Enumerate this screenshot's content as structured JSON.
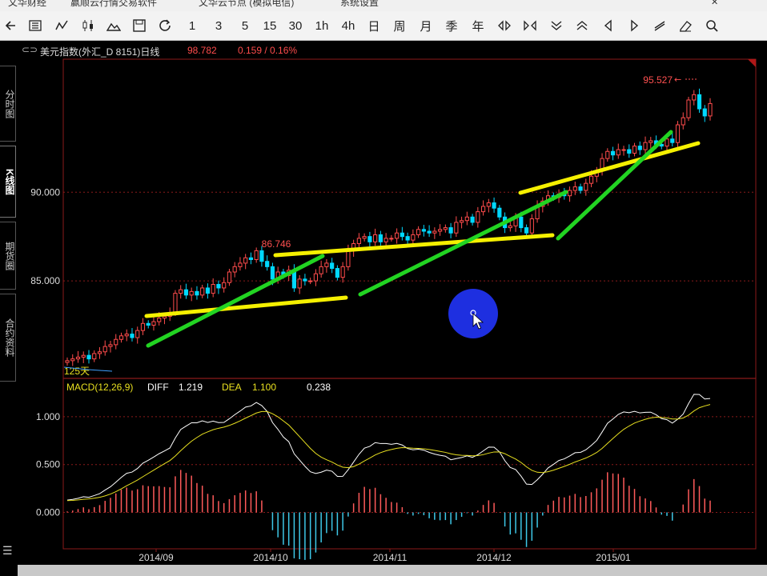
{
  "menubar": {
    "items": [
      "文华财经",
      "赢顺云行情交易软件",
      "文华云节点 (模拟电信)",
      "系统设置"
    ]
  },
  "toolbar": {
    "buttons": [
      {
        "name": "back-button",
        "icon": "arrow-left-icon",
        "label": ""
      },
      {
        "name": "list-button",
        "icon": "list-icon",
        "label": ""
      },
      {
        "name": "line-chart-button",
        "icon": "polyline-icon",
        "label": ""
      },
      {
        "name": "candle-button",
        "icon": "candlestick-icon",
        "label": ""
      },
      {
        "name": "bar-chart-button",
        "icon": "mountain-icon",
        "label": ""
      },
      {
        "name": "save-button",
        "icon": "save-icon",
        "label": ""
      },
      {
        "name": "refresh-button",
        "icon": "refresh-icon",
        "label": ""
      },
      {
        "name": "period-1m",
        "label": "1"
      },
      {
        "name": "period-3m",
        "label": "3"
      },
      {
        "name": "period-5m",
        "label": "5"
      },
      {
        "name": "period-15m",
        "label": "15"
      },
      {
        "name": "period-30m",
        "label": "30"
      },
      {
        "name": "period-1h",
        "label": "1h"
      },
      {
        "name": "period-4h",
        "label": "4h"
      },
      {
        "name": "period-day",
        "label": "日"
      },
      {
        "name": "period-week",
        "label": "周"
      },
      {
        "name": "period-month",
        "label": "月"
      },
      {
        "name": "period-quarter",
        "label": "季"
      },
      {
        "name": "period-year",
        "label": "年"
      }
    ],
    "right_buttons": [
      "zoom-in-icon",
      "zoom-out-icon",
      "scroll-down-icon",
      "scroll-up-icon",
      "pan-left-icon",
      "pan-right-icon",
      "draw-line-icon",
      "eraser-icon",
      "search-icon"
    ]
  },
  "infobar": {
    "symbol_icon": "link-icon",
    "title": "美元指数(外汇_D 8151)日线",
    "price": "98.782",
    "change": "0.159 / 0.16%"
  },
  "sidebar": {
    "tabs": [
      "分时图",
      "K线图",
      "期货圈",
      "合约资料"
    ],
    "active": 1
  },
  "colors": {
    "up": "#ff4c4c",
    "down": "#00d8ff",
    "grid": "#8b1a1a",
    "axis_text": "#dddddd",
    "price_label": "#ff5050",
    "diff": "#ffffff",
    "dea": "#e8e020",
    "trend_yellow": "#f5f000",
    "trend_green": "#22d422",
    "cursor": "#1e2fe0"
  },
  "chart_data": [
    {
      "type": "candlestick",
      "yticks": [
        "90.000",
        "85.000"
      ],
      "ylim": [
        79.5,
        97.5
      ],
      "max_label": "95.527",
      "max_marker": "←",
      "local_high_label": "86.746",
      "ma_label": "125天",
      "xlabels": [
        "2014/09",
        "2014/10",
        "2014/11",
        "2014/12",
        "2015/01"
      ],
      "closes": [
        80.5,
        80.6,
        80.7,
        80.8,
        80.6,
        80.9,
        81.0,
        81.3,
        81.4,
        81.7,
        81.9,
        82.0,
        81.8,
        82.2,
        82.6,
        82.5,
        82.7,
        82.9,
        83.0,
        83.2,
        84.3,
        84.5,
        84.2,
        84.4,
        84.2,
        84.6,
        84.3,
        84.8,
        84.6,
        84.9,
        85.5,
        85.8,
        86.0,
        86.3,
        86.2,
        86.7,
        86.1,
        85.8,
        85.1,
        85.5,
        85.3,
        85.6,
        84.6,
        85.1,
        85.0,
        85.0,
        85.4,
        85.8,
        86.0,
        85.7,
        85.2,
        85.8,
        86.7,
        87.1,
        87.4,
        87.5,
        87.2,
        87.6,
        87.2,
        87.4,
        87.4,
        87.7,
        87.5,
        87.3,
        87.6,
        87.9,
        87.8,
        87.7,
        87.8,
        87.9,
        88.0,
        87.7,
        88.3,
        88.4,
        88.6,
        88.3,
        88.9,
        89.2,
        89.4,
        89.1,
        88.6,
        88.0,
        88.1,
        88.6,
        88.0,
        87.7,
        88.5,
        89.2,
        89.5,
        89.8,
        89.7,
        89.9,
        89.8,
        90.1,
        90.3,
        90.1,
        90.5,
        90.9,
        91.2,
        91.9,
        92.3,
        92.1,
        92.4,
        92.4,
        92.2,
        92.6,
        92.4,
        92.8,
        92.9,
        92.7,
        92.6,
        93.0,
        92.8,
        93.8,
        94.2,
        95.2,
        95.5,
        94.7,
        94.3,
        95.0
      ]
    },
    {
      "type": "line+bar",
      "title": "MACD(12,26,9)",
      "series": [
        {
          "name": "DIFF",
          "value": "1.219"
        },
        {
          "name": "DEA",
          "value": "1.100"
        },
        {
          "name": "MACD",
          "value": "0.238"
        }
      ],
      "yticks": [
        "1.000",
        "0.500",
        "0.000"
      ],
      "ylim": [
        -0.38,
        1.4
      ]
    }
  ]
}
